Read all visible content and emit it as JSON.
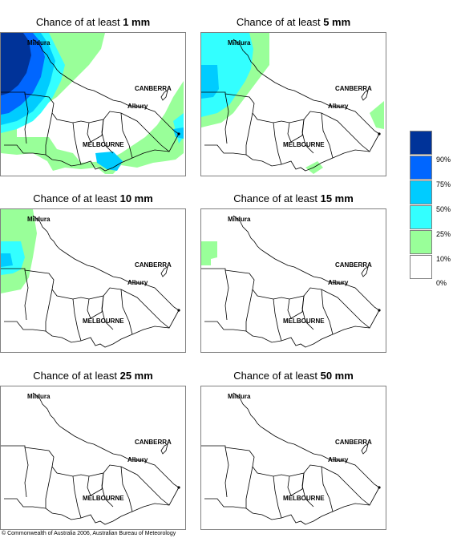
{
  "panels": [
    {
      "prefix": "Chance of at least ",
      "amount": "1 mm"
    },
    {
      "prefix": "Chance of at least ",
      "amount": "5 mm"
    },
    {
      "prefix": "Chance of at least ",
      "amount": "10 mm"
    },
    {
      "prefix": "Chance of at least ",
      "amount": "15 mm"
    },
    {
      "prefix": "Chance of at least ",
      "amount": "25 mm"
    },
    {
      "prefix": "Chance of at least ",
      "amount": "50 mm"
    }
  ],
  "cities": {
    "mildura": "Mildura",
    "canberra": "CANBERRA",
    "albury": "Albury",
    "melbourne": "MELBOURNE"
  },
  "legend": {
    "levels": [
      {
        "label": "90%",
        "color": "#003399"
      },
      {
        "label": "75%",
        "color": "#0066ff"
      },
      {
        "label": "50%",
        "color": "#00ccff"
      },
      {
        "label": "25%",
        "color": "#33ffff"
      },
      {
        "label": "10%",
        "color": "#99ff99"
      },
      {
        "label": "0%",
        "color": "#ffffff"
      }
    ]
  },
  "colors": {
    "p90": "#003399",
    "p75": "#0066ff",
    "p50": "#00ccff",
    "p25": "#33ffff",
    "p10": "#99ff99",
    "border": "#000000"
  },
  "copyright": "© Commonwealth of Australia 2006, Australian Bureau of Meteorology"
}
